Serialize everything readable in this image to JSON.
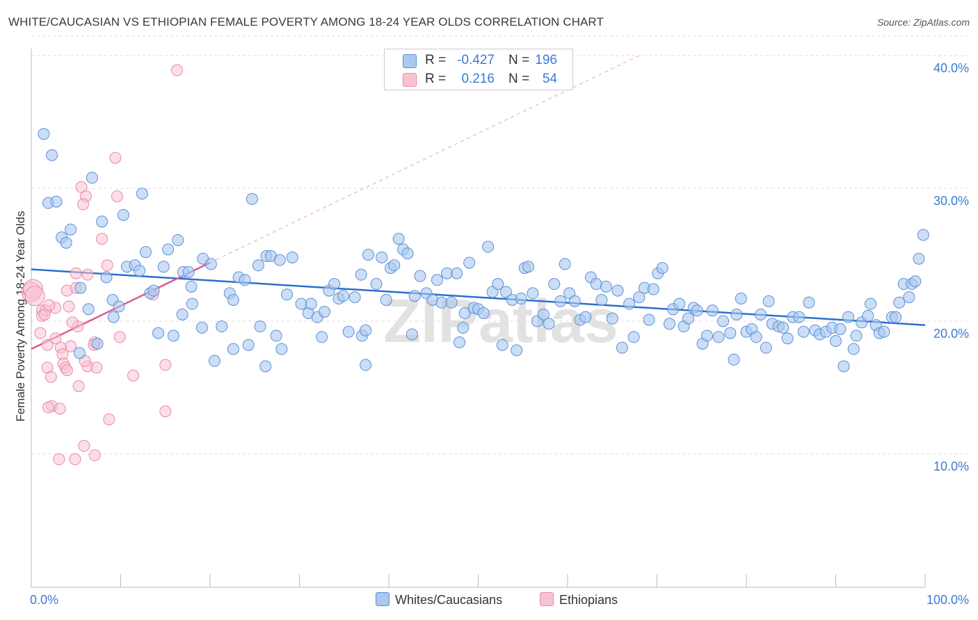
{
  "title": "WHITE/CAUCASIAN VS ETHIOPIAN FEMALE POVERTY AMONG 18-24 YEAR OLDS CORRELATION CHART",
  "source": "Source: ZipAtlas.com",
  "watermark": "ZIPatlas",
  "legend": {
    "rows": [
      {
        "r_label": "R =",
        "r_value": "-0.427",
        "n_label": "N =",
        "n_value": "196",
        "color": "#aac8f0"
      },
      {
        "r_label": "R =",
        "r_value": "0.216",
        "n_label": "N =",
        "n_value": "54",
        "color": "#f7b8cc"
      }
    ]
  },
  "bottom_legend": {
    "blue_label": "Whites/Caucasians",
    "pink_label": "Ethiopians"
  },
  "colors": {
    "blue_fill": "#aac8f0",
    "blue_stroke": "#5a8fd6",
    "blue_line": "#2a6fcc",
    "pink_fill": "#f7c3d3",
    "pink_stroke": "#e889a8",
    "pink_line": "#e0588a",
    "tick_label": "#3a7bd5",
    "grid": "#dddddd"
  },
  "chart_data": {
    "type": "scatter",
    "title": "WHITE/CAUCASIAN VS ETHIOPIAN FEMALE POVERTY AMONG 18-24 YEAR OLDS CORRELATION CHART",
    "xlabel": "",
    "ylabel": "Female Poverty Among 18-24 Year Olds",
    "xlim": [
      0,
      100
    ],
    "ylim": [
      0,
      42
    ],
    "x_tick_labels": [
      "0.0%",
      "100.0%"
    ],
    "y_ticks": [
      10,
      20,
      30,
      40
    ],
    "y_tick_labels": [
      "10.0%",
      "20.0%",
      "30.0%",
      "40.0%"
    ],
    "grid": true,
    "series": [
      {
        "name": "Whites/Caucasians",
        "r": -0.427,
        "n": 196,
        "trend": {
          "x": [
            0,
            100
          ],
          "y": [
            23.9,
            19.7
          ]
        },
        "points": [
          [
            1.4,
            34.1
          ],
          [
            2.3,
            32.5
          ],
          [
            1.9,
            28.9
          ],
          [
            2.8,
            29.0
          ],
          [
            6.8,
            30.8
          ],
          [
            12.4,
            29.6
          ],
          [
            24.7,
            29.2
          ],
          [
            4.4,
            26.9
          ],
          [
            7.9,
            27.5
          ],
          [
            10.3,
            28.0
          ],
          [
            3.4,
            26.3
          ],
          [
            3.9,
            25.9
          ],
          [
            12.8,
            25.2
          ],
          [
            15.3,
            25.4
          ],
          [
            16.4,
            26.1
          ],
          [
            19.2,
            24.7
          ],
          [
            10.7,
            24.1
          ],
          [
            11.6,
            24.2
          ],
          [
            14.8,
            24.1
          ],
          [
            12.1,
            23.8
          ],
          [
            8.4,
            23.3
          ],
          [
            17.0,
            23.7
          ],
          [
            17.6,
            23.7
          ],
          [
            5.5,
            22.5
          ],
          [
            9.1,
            21.6
          ],
          [
            13.3,
            22.1
          ],
          [
            13.7,
            22.3
          ],
          [
            16.9,
            20.5
          ],
          [
            17.9,
            22.6
          ],
          [
            20.1,
            24.3
          ],
          [
            23.2,
            23.3
          ],
          [
            23.9,
            23.1
          ],
          [
            22.2,
            22.1
          ],
          [
            25.4,
            24.2
          ],
          [
            26.3,
            24.9
          ],
          [
            26.8,
            24.9
          ],
          [
            27.8,
            24.6
          ],
          [
            29.2,
            24.8
          ],
          [
            22.6,
            21.6
          ],
          [
            18.0,
            21.3
          ],
          [
            6.4,
            20.9
          ],
          [
            9.2,
            20.3
          ],
          [
            9.8,
            21.1
          ],
          [
            5.4,
            17.6
          ],
          [
            7.4,
            18.3
          ],
          [
            14.2,
            19.1
          ],
          [
            15.9,
            18.9
          ],
          [
            19.1,
            19.5
          ],
          [
            21.3,
            19.6
          ],
          [
            20.5,
            17.0
          ],
          [
            22.6,
            17.9
          ],
          [
            24.3,
            18.2
          ],
          [
            25.6,
            19.6
          ],
          [
            26.2,
            16.6
          ],
          [
            27.4,
            18.9
          ],
          [
            28.0,
            17.9
          ],
          [
            28.6,
            22.0
          ],
          [
            30.2,
            21.3
          ],
          [
            31.0,
            20.6
          ],
          [
            31.3,
            21.3
          ],
          [
            32.0,
            20.3
          ],
          [
            32.5,
            18.8
          ],
          [
            32.8,
            20.7
          ],
          [
            33.3,
            22.3
          ],
          [
            33.9,
            22.8
          ],
          [
            34.4,
            21.7
          ],
          [
            34.9,
            21.9
          ],
          [
            35.5,
            19.2
          ],
          [
            36.2,
            21.8
          ],
          [
            37.0,
            18.9
          ],
          [
            36.9,
            23.5
          ],
          [
            37.4,
            19.3
          ],
          [
            37.7,
            25.0
          ],
          [
            38.6,
            22.8
          ],
          [
            39.2,
            24.8
          ],
          [
            39.7,
            21.6
          ],
          [
            40.2,
            24.0
          ],
          [
            40.6,
            24.2
          ],
          [
            41.1,
            26.2
          ],
          [
            41.6,
            25.4
          ],
          [
            42.1,
            25.1
          ],
          [
            42.6,
            19.0
          ],
          [
            42.9,
            21.9
          ],
          [
            43.5,
            23.4
          ],
          [
            44.2,
            22.1
          ],
          [
            44.9,
            21.6
          ],
          [
            45.4,
            23.1
          ],
          [
            45.9,
            21.4
          ],
          [
            46.5,
            23.6
          ],
          [
            47.0,
            21.4
          ],
          [
            47.6,
            23.6
          ],
          [
            47.9,
            18.4
          ],
          [
            48.5,
            20.6
          ],
          [
            49.0,
            24.4
          ],
          [
            49.5,
            21.0
          ],
          [
            50.0,
            20.9
          ],
          [
            50.6,
            20.6
          ],
          [
            51.1,
            25.6
          ],
          [
            51.6,
            22.2
          ],
          [
            52.2,
            22.8
          ],
          [
            52.7,
            18.2
          ],
          [
            53.1,
            22.2
          ],
          [
            53.8,
            21.6
          ],
          [
            54.3,
            17.8
          ],
          [
            54.8,
            21.7
          ],
          [
            55.2,
            24.0
          ],
          [
            55.6,
            24.1
          ],
          [
            56.1,
            22.1
          ],
          [
            56.6,
            20.0
          ],
          [
            57.3,
            20.5
          ],
          [
            57.9,
            19.8
          ],
          [
            58.5,
            22.8
          ],
          [
            59.2,
            21.5
          ],
          [
            59.7,
            24.3
          ],
          [
            60.2,
            22.1
          ],
          [
            60.8,
            21.5
          ],
          [
            61.4,
            20.1
          ],
          [
            62.0,
            20.3
          ],
          [
            62.6,
            23.3
          ],
          [
            63.2,
            22.8
          ],
          [
            63.8,
            21.6
          ],
          [
            64.3,
            22.6
          ],
          [
            65.0,
            20.2
          ],
          [
            65.6,
            22.3
          ],
          [
            66.1,
            18.0
          ],
          [
            66.9,
            21.3
          ],
          [
            67.4,
            18.8
          ],
          [
            68.0,
            21.8
          ],
          [
            68.6,
            22.5
          ],
          [
            69.1,
            20.1
          ],
          [
            69.6,
            22.4
          ],
          [
            70.1,
            23.6
          ],
          [
            70.6,
            24.0
          ],
          [
            71.4,
            19.8
          ],
          [
            71.8,
            20.9
          ],
          [
            72.5,
            21.3
          ],
          [
            73.0,
            19.6
          ],
          [
            73.5,
            20.2
          ],
          [
            74.1,
            21.0
          ],
          [
            74.5,
            20.8
          ],
          [
            75.1,
            18.3
          ],
          [
            75.6,
            18.9
          ],
          [
            76.2,
            20.8
          ],
          [
            76.9,
            18.8
          ],
          [
            77.4,
            20.0
          ],
          [
            78.2,
            19.1
          ],
          [
            78.6,
            17.1
          ],
          [
            78.9,
            20.5
          ],
          [
            79.4,
            21.7
          ],
          [
            80.0,
            19.2
          ],
          [
            80.6,
            19.4
          ],
          [
            81.1,
            18.8
          ],
          [
            81.6,
            20.5
          ],
          [
            82.2,
            18.0
          ],
          [
            82.5,
            21.5
          ],
          [
            82.9,
            19.8
          ],
          [
            83.6,
            19.6
          ],
          [
            84.1,
            19.5
          ],
          [
            84.6,
            18.7
          ],
          [
            85.2,
            20.3
          ],
          [
            85.9,
            20.3
          ],
          [
            86.4,
            19.2
          ],
          [
            87.0,
            21.4
          ],
          [
            87.7,
            19.3
          ],
          [
            88.2,
            19.0
          ],
          [
            88.9,
            19.2
          ],
          [
            89.6,
            19.5
          ],
          [
            90.0,
            18.5
          ],
          [
            90.5,
            19.4
          ],
          [
            90.9,
            16.6
          ],
          [
            91.4,
            20.3
          ],
          [
            92.0,
            17.9
          ],
          [
            92.3,
            18.9
          ],
          [
            92.9,
            19.9
          ],
          [
            93.6,
            20.4
          ],
          [
            93.9,
            21.3
          ],
          [
            94.5,
            19.7
          ],
          [
            94.9,
            19.1
          ],
          [
            95.4,
            19.2
          ],
          [
            96.3,
            20.3
          ],
          [
            96.7,
            20.3
          ],
          [
            97.1,
            21.4
          ],
          [
            97.6,
            22.8
          ],
          [
            98.2,
            21.8
          ],
          [
            98.5,
            22.8
          ],
          [
            98.9,
            23.0
          ],
          [
            99.3,
            24.7
          ],
          [
            99.8,
            26.5
          ],
          [
            48.3,
            19.5
          ],
          [
            37.4,
            16.7
          ]
        ]
      },
      {
        "name": "Ethiopians",
        "r": 0.216,
        "n": 54,
        "trend_solid": {
          "x": [
            0,
            20
          ],
          "y": [
            17.9,
            24.4
          ]
        },
        "trend_dashed": {
          "x": [
            20,
            68
          ],
          "y": [
            24.4,
            40.0
          ]
        },
        "points": [
          [
            16.3,
            38.9
          ],
          [
            9.4,
            32.3
          ],
          [
            5.6,
            30.1
          ],
          [
            6.1,
            29.4
          ],
          [
            9.6,
            29.4
          ],
          [
            5.8,
            28.8
          ],
          [
            7.9,
            26.2
          ],
          [
            8.5,
            24.2
          ],
          [
            5.0,
            23.6
          ],
          [
            6.3,
            23.5
          ],
          [
            0.0,
            22.2
          ],
          [
            0.2,
            22.4
          ],
          [
            0.4,
            21.9
          ],
          [
            4.0,
            22.3
          ],
          [
            5.0,
            22.5
          ],
          [
            13.6,
            22.0
          ],
          [
            1.2,
            20.8
          ],
          [
            1.6,
            20.8
          ],
          [
            2.7,
            21.0
          ],
          [
            4.2,
            21.1
          ],
          [
            1.2,
            20.4
          ],
          [
            1.5,
            20.5
          ],
          [
            5.2,
            19.6
          ],
          [
            4.6,
            19.9
          ],
          [
            1.0,
            19.1
          ],
          [
            7.1,
            18.4
          ],
          [
            9.9,
            18.8
          ],
          [
            7.0,
            18.2
          ],
          [
            1.8,
            18.2
          ],
          [
            4.4,
            18.1
          ],
          [
            3.3,
            18.0
          ],
          [
            3.5,
            17.5
          ],
          [
            3.6,
            16.8
          ],
          [
            6.3,
            16.6
          ],
          [
            7.3,
            16.5
          ],
          [
            15.0,
            16.7
          ],
          [
            1.8,
            16.5
          ],
          [
            3.8,
            16.5
          ],
          [
            4.0,
            16.3
          ],
          [
            11.4,
            15.9
          ],
          [
            2.2,
            15.8
          ],
          [
            5.3,
            15.1
          ],
          [
            2.3,
            13.6
          ],
          [
            3.2,
            13.4
          ],
          [
            1.9,
            13.5
          ],
          [
            15.0,
            13.2
          ],
          [
            8.7,
            12.6
          ],
          [
            5.9,
            10.6
          ],
          [
            3.1,
            9.6
          ],
          [
            4.9,
            9.6
          ],
          [
            7.1,
            9.9
          ],
          [
            2.7,
            18.7
          ],
          [
            6.0,
            17.0
          ],
          [
            2.0,
            21.2
          ]
        ]
      }
    ]
  }
}
